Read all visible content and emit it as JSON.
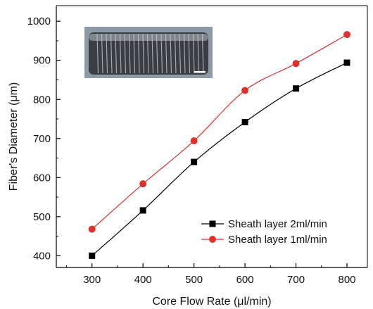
{
  "chart_data": {
    "type": "line",
    "xlabel": "Core Flow Rate (μl/min)",
    "ylabel": "Fiber's Diameter (μm)",
    "xlim": [
      230,
      840
    ],
    "ylim": [
      370,
      1040
    ],
    "xticks": [
      300,
      400,
      500,
      600,
      700,
      800
    ],
    "yticks": [
      400,
      500,
      600,
      700,
      800,
      900,
      1000
    ],
    "x": [
      300,
      400,
      500,
      600,
      700,
      800
    ],
    "series": [
      {
        "name": "Sheath layer 2ml/min",
        "values": [
          400,
          516,
          640,
          742,
          828,
          894
        ],
        "color": "#000000",
        "marker": "square"
      },
      {
        "name": "Sheath layer 1ml/min",
        "values": [
          468,
          584,
          694,
          823,
          892,
          966
        ],
        "color": "#e0302a",
        "marker": "circle"
      }
    ],
    "legend": "bottom-right",
    "grid": false,
    "inset": "photograph of fiber wound on a cylinder with scale bar"
  }
}
